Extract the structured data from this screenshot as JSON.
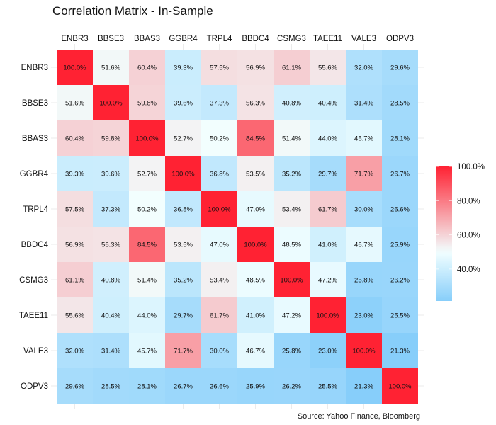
{
  "chart_data": {
    "type": "heatmap",
    "title": "Correlation Matrix - In-Sample",
    "caption": "Source: Yahoo Finance, Bloomberg",
    "labels": [
      "ENBR3",
      "BBSE3",
      "BBAS3",
      "GGBR4",
      "TRPL4",
      "BBDC4",
      "CSMG3",
      "TAEE11",
      "VALE3",
      "ODPV3"
    ],
    "values": [
      [
        100.0,
        51.6,
        60.4,
        39.3,
        57.5,
        56.9,
        61.1,
        55.6,
        32.0,
        29.6
      ],
      [
        51.6,
        100.0,
        59.8,
        39.6,
        37.3,
        56.3,
        40.8,
        40.4,
        31.4,
        28.5
      ],
      [
        60.4,
        59.8,
        100.0,
        52.7,
        50.2,
        84.5,
        51.4,
        44.0,
        45.7,
        28.1
      ],
      [
        39.3,
        39.6,
        52.7,
        100.0,
        36.8,
        53.5,
        35.2,
        29.7,
        71.7,
        26.7
      ],
      [
        57.5,
        37.3,
        50.2,
        36.8,
        100.0,
        47.0,
        53.4,
        61.7,
        30.0,
        26.6
      ],
      [
        56.9,
        56.3,
        84.5,
        53.5,
        47.0,
        100.0,
        48.5,
        41.0,
        46.7,
        25.9
      ],
      [
        61.1,
        40.8,
        51.4,
        35.2,
        53.4,
        48.5,
        100.0,
        47.2,
        25.8,
        26.2
      ],
      [
        55.6,
        40.4,
        44.0,
        29.7,
        61.7,
        41.0,
        47.2,
        100.0,
        23.0,
        25.5
      ],
      [
        32.0,
        31.4,
        45.7,
        71.7,
        30.0,
        46.7,
        25.8,
        23.0,
        100.0,
        21.3
      ],
      [
        29.6,
        28.5,
        28.1,
        26.7,
        26.6,
        25.9,
        26.2,
        25.5,
        21.3,
        100.0
      ]
    ],
    "value_format": "percent, 1 decimal",
    "colorscale": {
      "low": "#87CEFA",
      "mid": "#F2FFFF",
      "high": "#FF2233",
      "midpoint": 50
    },
    "legend": {
      "ticks": [
        "100.0%",
        "80.0%",
        "60.0%",
        "40.0%"
      ],
      "tick_values": [
        100,
        80,
        60,
        40
      ],
      "range": [
        21.3,
        100
      ],
      "placement": "right"
    },
    "x_axis_position": "top",
    "grid": true
  }
}
